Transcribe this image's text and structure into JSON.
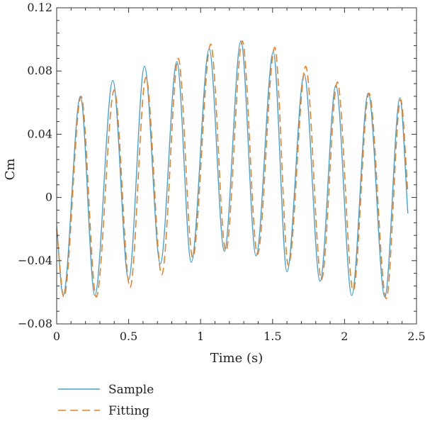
{
  "chart_data": {
    "type": "line",
    "xlabel": "Time (s)",
    "ylabel": "Cm",
    "xlim": [
      0,
      2.5
    ],
    "ylim": [
      -0.08,
      0.12
    ],
    "xticks": [
      0,
      0.5,
      1,
      1.5,
      2,
      2.5
    ],
    "xtick_labels": [
      "0",
      "0.5",
      "1",
      "1.5",
      "2",
      "2.5"
    ],
    "yticks": [
      -0.08,
      -0.04,
      0,
      0.04,
      0.08,
      0.12
    ],
    "ytick_labels": [
      "−0.08",
      "−0.04",
      "0",
      "0.04",
      "0.08",
      "0.12"
    ],
    "grid": false,
    "legend_position": "bottom-left",
    "series": [
      {
        "name": "Sample",
        "style": "solid",
        "color": "#3ea3d9",
        "x": [
          0.0,
          0.045,
          0.165,
          0.265,
          0.39,
          0.5,
          0.61,
          0.72,
          0.835,
          0.935,
          1.06,
          1.165,
          1.28,
          1.385,
          1.505,
          1.6,
          1.72,
          1.83,
          1.94,
          2.05,
          2.165,
          2.28,
          2.385,
          2.44
        ],
        "y": [
          -0.018,
          -0.062,
          0.064,
          -0.062,
          0.074,
          -0.052,
          0.083,
          -0.042,
          0.086,
          -0.041,
          0.094,
          -0.034,
          0.099,
          -0.037,
          0.092,
          -0.047,
          0.078,
          -0.053,
          0.071,
          -0.062,
          0.066,
          -0.063,
          0.063,
          -0.01
        ]
      },
      {
        "name": "Fitting",
        "style": "dashed",
        "color": "#f07f1e",
        "x": [
          0.0,
          0.05,
          0.17,
          0.275,
          0.4,
          0.51,
          0.62,
          0.73,
          0.845,
          0.945,
          1.07,
          1.175,
          1.29,
          1.395,
          1.515,
          1.61,
          1.73,
          1.84,
          1.95,
          2.06,
          2.17,
          2.29,
          2.39,
          2.44
        ],
        "y": [
          -0.02,
          -0.063,
          0.064,
          -0.063,
          0.068,
          -0.057,
          0.076,
          -0.049,
          0.088,
          -0.038,
          0.097,
          -0.034,
          0.099,
          -0.036,
          0.095,
          -0.043,
          0.083,
          -0.052,
          0.073,
          -0.059,
          0.066,
          -0.064,
          0.062,
          0.003
        ]
      }
    ]
  }
}
